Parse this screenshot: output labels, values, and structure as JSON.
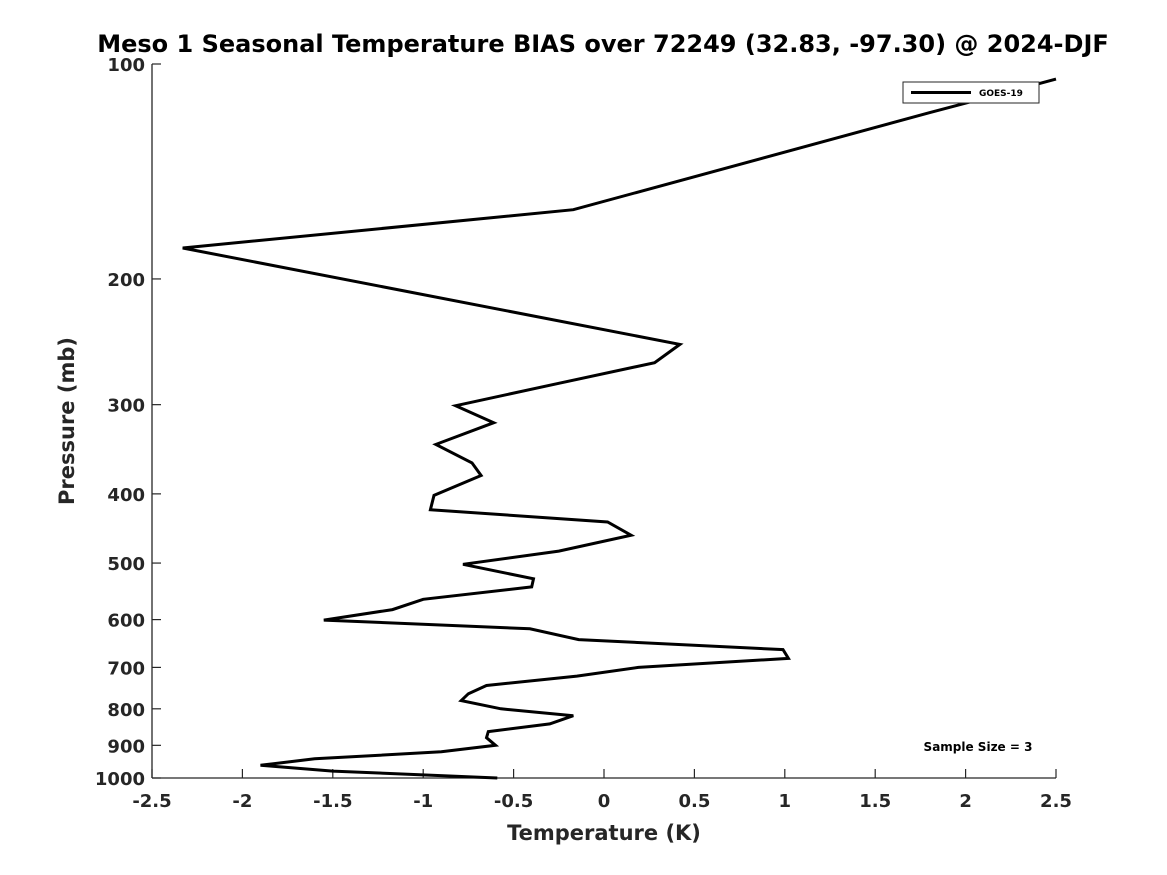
{
  "chart_data": {
    "type": "line",
    "title": "Meso 1 Seasonal Temperature BIAS over 72249 (32.83, -97.30) @ 2024-DJF",
    "xlabel": "Temperature (K)",
    "ylabel": "Pressure (mb)",
    "xlim": [
      -2.5,
      2.5
    ],
    "ylim": [
      100,
      1000
    ],
    "y_scale": "log",
    "y_reversed": true,
    "grid": false,
    "legend_position": "top-right",
    "x_ticks": [
      -2.5,
      -2,
      -1.5,
      -1,
      -0.5,
      0,
      0.5,
      1,
      1.5,
      2,
      2.5
    ],
    "x_tick_labels": [
      "-2.5",
      "-2",
      "-1.5",
      "-1",
      "-0.5",
      "0",
      "0.5",
      "1",
      "1.5",
      "2",
      "2.5"
    ],
    "y_ticks": [
      100,
      200,
      300,
      400,
      500,
      600,
      700,
      800,
      900,
      1000
    ],
    "y_tick_labels": [
      "100",
      "200",
      "300",
      "400",
      "500",
      "600",
      "700",
      "800",
      "900",
      "1000"
    ],
    "series": [
      {
        "name": "GOES-19",
        "color": "#000000",
        "points": [
          {
            "t": 2.5,
            "p": 105
          },
          {
            "t": 2.2,
            "p": 110
          },
          {
            "t": 1.8,
            "p": 117
          },
          {
            "t": -0.17,
            "p": 160
          },
          {
            "t": -2.33,
            "p": 181
          },
          {
            "t": 0.42,
            "p": 247
          },
          {
            "t": 0.28,
            "p": 262
          },
          {
            "t": -0.25,
            "p": 280
          },
          {
            "t": -0.82,
            "p": 301
          },
          {
            "t": -0.61,
            "p": 318
          },
          {
            "t": -0.93,
            "p": 341
          },
          {
            "t": -0.73,
            "p": 362
          },
          {
            "t": -0.68,
            "p": 377
          },
          {
            "t": -0.94,
            "p": 402
          },
          {
            "t": -0.96,
            "p": 421
          },
          {
            "t": 0.02,
            "p": 438
          },
          {
            "t": 0.15,
            "p": 457
          },
          {
            "t": -0.25,
            "p": 481
          },
          {
            "t": -0.78,
            "p": 502
          },
          {
            "t": -0.39,
            "p": 526
          },
          {
            "t": -0.4,
            "p": 540
          },
          {
            "t": -1.0,
            "p": 562
          },
          {
            "t": -1.17,
            "p": 581
          },
          {
            "t": -1.55,
            "p": 601
          },
          {
            "t": -0.41,
            "p": 618
          },
          {
            "t": -0.14,
            "p": 640
          },
          {
            "t": 0.99,
            "p": 661
          },
          {
            "t": 1.02,
            "p": 680
          },
          {
            "t": 0.19,
            "p": 700
          },
          {
            "t": -0.15,
            "p": 720
          },
          {
            "t": -0.65,
            "p": 742
          },
          {
            "t": -0.75,
            "p": 762
          },
          {
            "t": -0.79,
            "p": 779
          },
          {
            "t": -0.57,
            "p": 800
          },
          {
            "t": -0.17,
            "p": 818
          },
          {
            "t": -0.3,
            "p": 840
          },
          {
            "t": -0.64,
            "p": 861
          },
          {
            "t": -0.65,
            "p": 878
          },
          {
            "t": -0.6,
            "p": 900
          },
          {
            "t": -0.9,
            "p": 919
          },
          {
            "t": -1.6,
            "p": 940
          },
          {
            "t": -1.9,
            "p": 960
          },
          {
            "t": -1.5,
            "p": 978
          },
          {
            "t": -0.59,
            "p": 1000
          }
        ]
      }
    ],
    "annotations": [
      {
        "text": "Sample Size = 3",
        "position": "bottom-right"
      }
    ]
  }
}
